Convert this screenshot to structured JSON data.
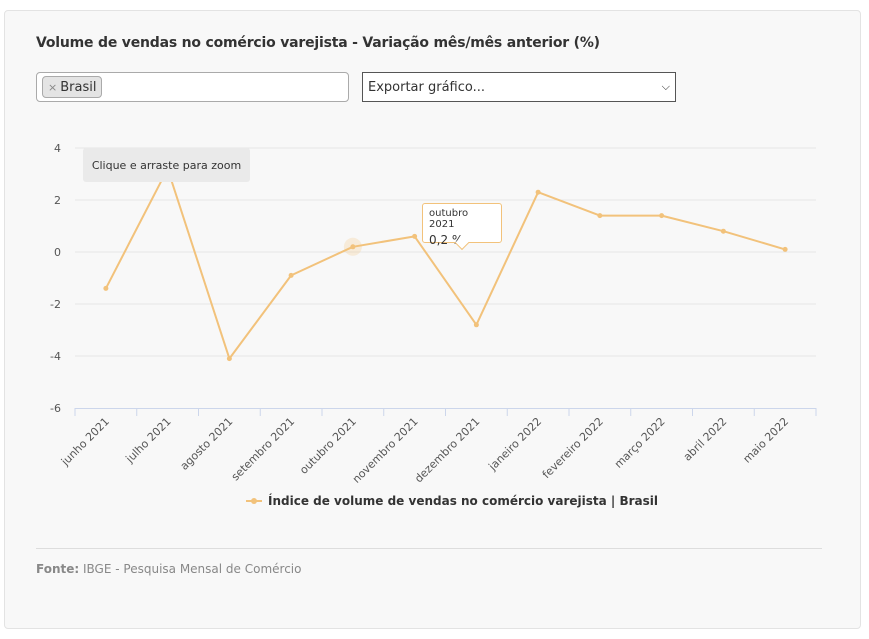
{
  "title": "Volume de vendas no comércio varejista - Variação mês/mês anterior (%)",
  "filter": {
    "chip_label": "Brasil",
    "remove_symbol": "×"
  },
  "export_select": {
    "value": "Exportar gráfico...",
    "chevron": "⌄"
  },
  "zoom_hint": "Clique e arraste para zoom",
  "tooltip": {
    "category": "outubro 2021",
    "value": "0,2 %"
  },
  "legend": {
    "label": "Índice de volume de vendas no comércio varejista | Brasil"
  },
  "footer": {
    "prefix": "Fonte:",
    "text": "IBGE - Pesquisa Mensal de Comércio"
  },
  "colors": {
    "line": "#f2c27b",
    "grid": "#e6e6e6",
    "axis": "#ccd6eb"
  },
  "chart_data": {
    "type": "line",
    "categories": [
      "junho 2021",
      "julho 2021",
      "agosto 2021",
      "setembro 2021",
      "outubro 2021",
      "novembro 2021",
      "dezembro 2021",
      "janeiro 2022",
      "fevereiro 2022",
      "março 2022",
      "abril 2022",
      "maio 2022"
    ],
    "series": [
      {
        "name": "Índice de volume de vendas no comércio varejista | Brasil",
        "values": [
          -1.4,
          3.2,
          -4.1,
          -0.9,
          0.2,
          0.6,
          -2.8,
          2.3,
          1.4,
          1.4,
          0.8,
          0.1
        ]
      }
    ],
    "yticks": [
      4,
      2,
      0,
      -2,
      -4,
      -6
    ],
    "ylim": [
      -6,
      4
    ],
    "grid": true,
    "legend_position": "bottom",
    "highlighted_category": "outubro 2021"
  }
}
